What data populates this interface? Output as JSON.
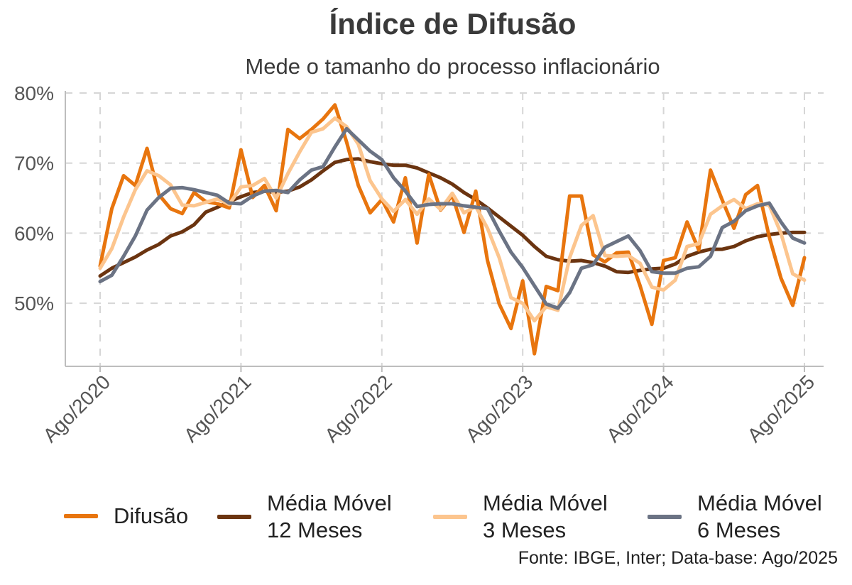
{
  "chart_data": {
    "type": "line",
    "title": "Índice de Difusão",
    "subtitle": "Mede o tamanho do processo inflacionário",
    "xlabel": "",
    "ylabel": "",
    "x_tick_labels": [
      "Ago/2020",
      "Ago/2021",
      "Ago/2022",
      "Ago/2023",
      "Ago/2024",
      "Ago/2025"
    ],
    "y_tick_labels": [
      "50%",
      "60%",
      "70%",
      "80%"
    ],
    "y_ticks": [
      50,
      60,
      70,
      80
    ],
    "ylim": [
      41,
      80
    ],
    "x_range": [
      "Ago/2020",
      "Ago/2025"
    ],
    "grid": true,
    "legend_position": "bottom",
    "months_start": "Ago/2020",
    "series": [
      {
        "name": "Difusão",
        "color": "#e8750e",
        "values": [
          55.3,
          63.5,
          68.2,
          66.8,
          72.1,
          65.5,
          63.5,
          62.8,
          65.8,
          64.5,
          64.2,
          63.6,
          71.9,
          65.1,
          66.8,
          63.2,
          74.8,
          73.5,
          74.8,
          76.3,
          78.3,
          73.0,
          66.8,
          62.9,
          64.8,
          61.6,
          67.9,
          58.6,
          68.4,
          63.3,
          65.4,
          60.1,
          66.0,
          56.1,
          49.9,
          46.4,
          53.2,
          42.8,
          52.4,
          51.8,
          65.3,
          65.3,
          56.9,
          55.9,
          57.2,
          57.3,
          52.5,
          47.0,
          56.1,
          56.5,
          61.6,
          57.6,
          69.0,
          64.7,
          60.7,
          65.5,
          66.8,
          59.5,
          53.6,
          49.7,
          56.5
        ]
      },
      {
        "name": "Média Móvel 12 Meses",
        "color": "#6b3410",
        "values": [
          53.9,
          55.0,
          55.8,
          56.6,
          57.6,
          58.4,
          59.6,
          60.2,
          61.2,
          63.0,
          63.7,
          64.5,
          65.2,
          65.8,
          66.0,
          65.8,
          66.0,
          66.6,
          67.6,
          68.9,
          70.1,
          70.5,
          70.6,
          70.2,
          69.9,
          69.7,
          69.7,
          69.3,
          68.6,
          67.9,
          67.0,
          65.8,
          64.8,
          63.6,
          62.3,
          61.0,
          59.7,
          58.1,
          56.7,
          56.2,
          56.0,
          56.1,
          55.8,
          55.3,
          54.5,
          54.4,
          54.7,
          54.9,
          55.0,
          55.6,
          56.7,
          57.3,
          57.7,
          57.7,
          58.1,
          58.9,
          59.5,
          59.8,
          60.0,
          60.1,
          60.1
        ]
      },
      {
        "name": "Média Móvel 3 Meses",
        "color": "#fcc58e",
        "values": [
          55.0,
          57.8,
          62.3,
          66.2,
          68.9,
          68.2,
          66.9,
          64.0,
          63.9,
          64.4,
          64.9,
          64.1,
          66.6,
          66.8,
          67.8,
          65.0,
          68.5,
          71.6,
          74.4,
          74.9,
          76.4,
          75.2,
          72.7,
          67.5,
          64.9,
          63.1,
          64.8,
          62.7,
          64.9,
          63.4,
          65.7,
          62.9,
          63.8,
          60.7,
          56.5,
          50.8,
          50.0,
          47.5,
          49.5,
          49.0,
          56.5,
          61.1,
          62.5,
          56.8,
          56.7,
          56.8,
          55.7,
          52.3,
          51.9,
          53.3,
          58.1,
          58.5,
          62.7,
          63.9,
          64.8,
          63.5,
          64.2,
          64.0,
          60.0,
          54.2,
          53.3
        ]
      },
      {
        "name": "Média Móvel 6 Meses",
        "color": "#6b7384",
        "values": [
          53.1,
          54.0,
          56.7,
          59.6,
          63.3,
          65.1,
          66.4,
          66.5,
          66.2,
          65.8,
          65.4,
          64.3,
          64.2,
          65.3,
          66.0,
          66.1,
          65.8,
          67.6,
          69.0,
          69.5,
          72.3,
          74.9,
          73.3,
          71.7,
          70.5,
          67.9,
          66.0,
          63.8,
          64.1,
          64.2,
          64.2,
          63.9,
          63.7,
          63.5,
          60.3,
          57.3,
          55.1,
          52.5,
          49.9,
          49.3,
          51.5,
          55.0,
          55.5,
          58.0,
          58.8,
          59.6,
          57.5,
          54.5,
          54.3,
          54.3,
          55.0,
          55.2,
          56.7,
          60.8,
          61.7,
          63.2,
          63.9,
          64.3,
          61.6,
          59.3,
          58.6
        ]
      }
    ]
  },
  "legend": {
    "items": [
      {
        "lines": [
          "Difusão"
        ],
        "color": "#e8750e"
      },
      {
        "lines": [
          "Média Móvel",
          "12 Meses"
        ],
        "color": "#6b3410"
      },
      {
        "lines": [
          "Média Móvel",
          "3 Meses"
        ],
        "color": "#fcc58e"
      },
      {
        "lines": [
          "Média Móvel",
          "6 Meses"
        ],
        "color": "#6b7384"
      }
    ]
  },
  "source": "Fonte: IBGE, Inter; Data-base: Ago/2025"
}
